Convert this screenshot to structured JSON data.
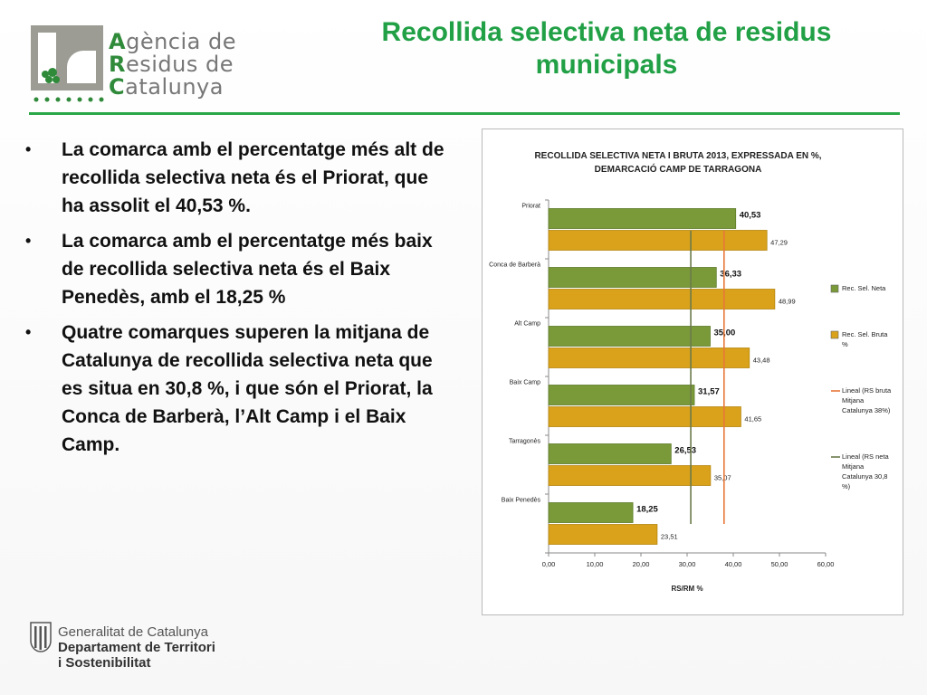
{
  "logo": {
    "lines": [
      {
        "first": "A",
        "rest": "gència de"
      },
      {
        "first": "R",
        "rest": "esidus de"
      },
      {
        "first": "C",
        "rest": "atalunya"
      }
    ]
  },
  "slide_title": "Recollida selectiva neta de residus municipals",
  "bullets": [
    "La comarca amb el percentatge més alt de recollida selectiva neta és el Priorat, que ha assolit el 40,53 %.",
    "La comarca amb el percentatge més baix de recollida selectiva neta és el Baix Penedès, amb el 18,25 %",
    "Quatre comarques superen la mitjana de Catalunya de recollida selectiva neta que es situa en 30,8 %, i que són el Priorat, la Conca de Barberà, l’Alt Camp i el Baix Camp."
  ],
  "bullet_symbol": "•",
  "footer": {
    "line1": "Generalitat de Catalunya",
    "line2": "Departament de Territori",
    "line3": "i Sostenibilitat"
  },
  "colors": {
    "accent_green": "#21a046",
    "neta": "#7a9a3a",
    "bruta": "#d9a21a",
    "line_bruta": "#e8773a",
    "line_neta": "#6b7a4a"
  },
  "chart_data": {
    "type": "bar",
    "orientation": "horizontal",
    "title_lines": [
      "RECOLLIDA SELECTIVA NETA I BRUTA 2013, EXPRESSADA EN %,",
      "DEMARCACIÓ CAMP DE TARRAGONA"
    ],
    "xlabel": "RS/RM %",
    "xlim": [
      0,
      60
    ],
    "xticks": [
      "0,00",
      "10,00",
      "20,00",
      "30,00",
      "40,00",
      "50,00",
      "60,00"
    ],
    "categories": [
      "Priorat",
      "Conca de Barberà",
      "Alt Camp",
      "Baix Camp",
      "Tarragonès",
      "Baix Penedès"
    ],
    "series": [
      {
        "name": "Rec. Sel. Neta",
        "values": [
          40.53,
          36.33,
          35.0,
          31.57,
          26.53,
          18.25
        ],
        "labels": [
          "40,53",
          "36,33",
          "35,00",
          "31,57",
          "26,53",
          "18,25"
        ]
      },
      {
        "name": "Rec. Sel. Bruta %",
        "values": [
          47.29,
          48.99,
          43.48,
          41.65,
          35.07,
          23.51
        ],
        "labels": [
          "47,29",
          "48,99",
          "43,48",
          "41,65",
          "35,07",
          "23,51"
        ]
      }
    ],
    "reference_lines": [
      {
        "name": "Lineal (RS bruta Mitjana Catalunya 38%)",
        "value": 38
      },
      {
        "name": "Lineal (RS neta Mitjana Catalunya 30,8 %)",
        "value": 30.8
      }
    ],
    "legend": {
      "position": "right",
      "entries": [
        {
          "kind": "bar",
          "series": 0,
          "lines": [
            "Rec. Sel. Neta"
          ]
        },
        {
          "kind": "bar",
          "series": 1,
          "lines": [
            "Rec. Sel. Bruta",
            "%"
          ]
        },
        {
          "kind": "line",
          "ref": 0,
          "lines": [
            "Lineal (RS bruta",
            "Mitjana",
            "Catalunya 38%)"
          ]
        },
        {
          "kind": "line",
          "ref": 1,
          "lines": [
            "Lineal (RS neta",
            "Mitjana",
            "Catalunya 30,8",
            "%)"
          ]
        }
      ]
    },
    "grid": false
  }
}
